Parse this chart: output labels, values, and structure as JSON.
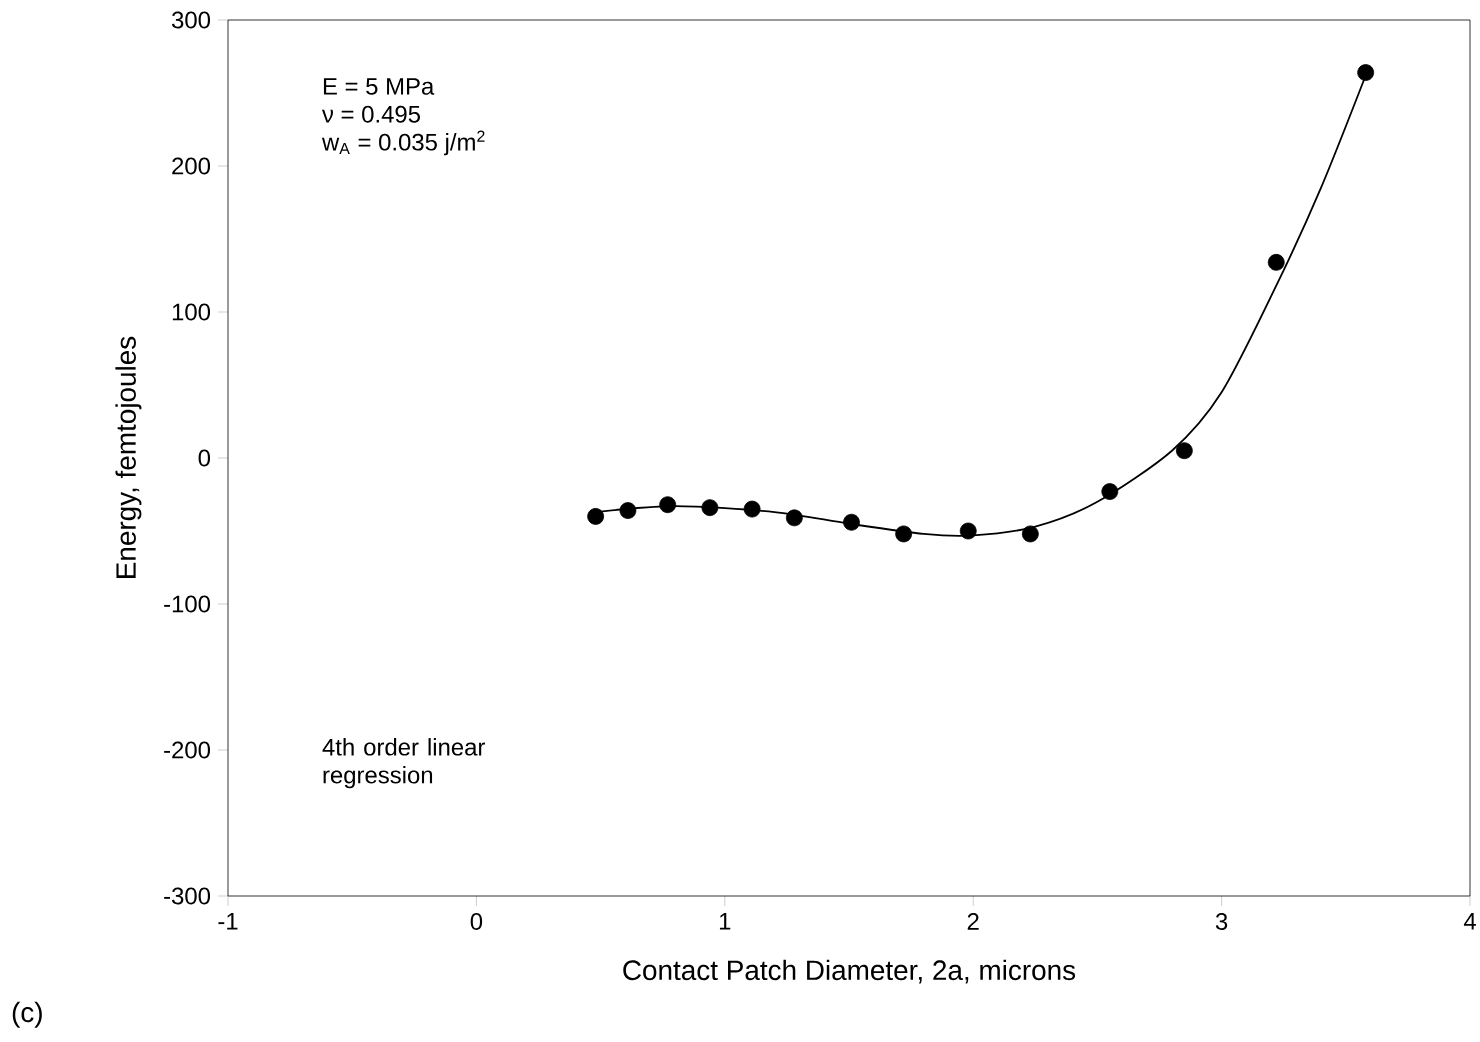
{
  "chart_data": {
    "type": "scatter",
    "xlabel": "Contact Patch Diameter, 2a, microns",
    "ylabel": "Energy, femtojoules",
    "annotations": [
      "E = 5 MPa",
      "ν = 0.495",
      "w$_{A}$ = 0.035 j/m$^{2}$",
      "4th order linear regression",
      "(c)"
    ],
    "xlim": [
      -1,
      4
    ],
    "ylim": [
      -300,
      300
    ],
    "xticks": [
      -1,
      0,
      1,
      2,
      3,
      4
    ],
    "yticks": [
      -300,
      -200,
      -100,
      0,
      100,
      200,
      300
    ],
    "grid": false,
    "series": [
      {
        "color": "#000000",
        "marker": "circle",
        "x": [
          0.48,
          0.61,
          0.77,
          0.94,
          1.11,
          1.28,
          1.51,
          1.72,
          1.98,
          2.23,
          2.55,
          2.85,
          3.22,
          3.58
        ],
        "values": [
          -40,
          -36,
          -32,
          -34,
          -35,
          -41,
          -44,
          -52,
          -50,
          -52,
          -23,
          5,
          134,
          264
        ]
      },
      {
        "type": "line",
        "color": "#000000",
        "marker": "none",
        "line_style": "solid",
        "x": [
          0.48,
          0.8,
          1.2,
          1.5,
          1.8,
          2.0,
          2.25,
          2.5,
          2.8,
          3.0,
          3.22,
          3.4,
          3.58
        ],
        "values": [
          -37,
          -33,
          -37,
          -45,
          -52,
          -53,
          -47,
          -30,
          5,
          45,
          118,
          185,
          262
        ]
      }
    ]
  }
}
